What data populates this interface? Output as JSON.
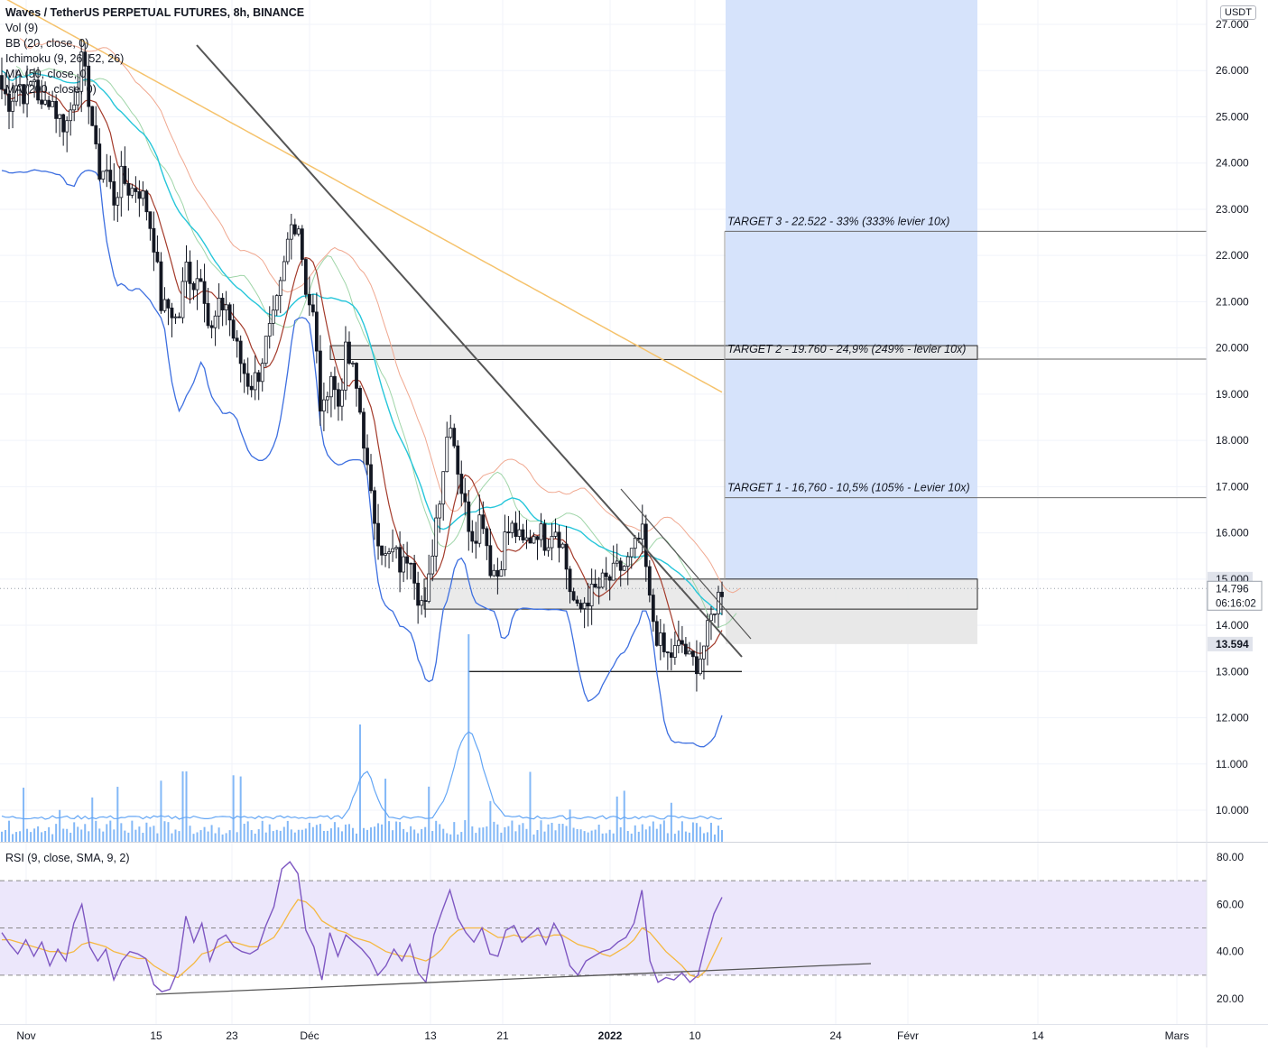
{
  "header": {
    "title": "Waves / TetherUS PERPETUAL FUTURES, 8h, BINANCE",
    "currency": "USDT",
    "indicators": [
      "Vol (9)",
      "BB (20, close, 0)",
      "Ichimoku (9, 26, 52, 26)",
      "MA (50, close, 0)",
      "MA (200, close, 0)"
    ]
  },
  "colors": {
    "candle": "#131722",
    "ma50": "#26c6da",
    "ma200": "#f5c26b",
    "bb": "#3d6fe0",
    "ichimoku_base": "#a33a2a",
    "ichimoku_lead": "#f0a890",
    "ichimoku_cloud_line": "#9fd5a8",
    "rsi": "#7e57c2",
    "rsi_ma": "#f5b840",
    "rsi_band": "#ece7fb",
    "target_zone": "#d6e3fb",
    "volume": "#64a6f5",
    "trendline": "#555555",
    "zone": "#e6e6e6"
  },
  "chart_data": {
    "type": "candlestick",
    "price_axis": {
      "ylim": [
        9.5,
        27.2
      ],
      "ticks": [
        "27.000",
        "26.000",
        "25.000",
        "24.000",
        "23.000",
        "22.000",
        "21.000",
        "20.000",
        "19.000",
        "18.000",
        "17.000",
        "16.000",
        "15.000",
        "14.000",
        "13.000",
        "12.000",
        "11.000",
        "10.000"
      ]
    },
    "time_axis": {
      "labels": [
        "Nov",
        "15",
        "23",
        "Déc",
        "13",
        "21",
        "2022",
        "10",
        "24",
        "Févr",
        "14",
        "Mars"
      ]
    },
    "price_labels": {
      "current": "14.796",
      "countdown": "06:16:02",
      "level_high": "15.000",
      "level_low": "13.594"
    },
    "targets": [
      {
        "label": "TARGET 3 - 22.522 - 33% (333% levier 10x)",
        "price": 22.522
      },
      {
        "label": "TARGET 2 - 19.760 - 24,9% (249% - levier 10x)",
        "price": 19.76
      },
      {
        "label": "TARGET 1 - 16,760 - 10,5% (105% - Levier 10x)",
        "price": 16.76
      }
    ],
    "zones": [
      {
        "name": "resistance",
        "from": 19.75,
        "to": 20.05
      },
      {
        "name": "support",
        "from": 14.35,
        "to": 15.0
      }
    ],
    "support_line": 13.0,
    "close_series": [
      25.6,
      25.3,
      25.8,
      25.4,
      25.9,
      25.1,
      25.5,
      25.0,
      24.8,
      25.4,
      26.2,
      25.3,
      23.8,
      23.9,
      23.2,
      23.7,
      23.4,
      23.5,
      23.1,
      22.3,
      20.8,
      20.9,
      20.5,
      21.8,
      21.4,
      21.7,
      20.2,
      20.8,
      21.0,
      20.2,
      19.6,
      19.2,
      19.4,
      20.1,
      20.6,
      21.4,
      22.6,
      22.8,
      21.3,
      20.6,
      18.3,
      19.6,
      18.7,
      19.9,
      19.4,
      18.4,
      16.8,
      16.0,
      15.4,
      15.6,
      15.2,
      15.7,
      14.7,
      14.3,
      16.0,
      17.2,
      18.6,
      17.4,
      16.4,
      15.9,
      16.5,
      15.3,
      15.1,
      16.0,
      16.1,
      15.7,
      15.9,
      16.1,
      15.8,
      16.2,
      15.8,
      14.8,
      14.2,
      14.6,
      14.7,
      14.9,
      15.0,
      15.2,
      15.3,
      15.6,
      16.0,
      14.4,
      13.7,
      13.3,
      13.4,
      13.6,
      13.2,
      13.2,
      13.7,
      14.4,
      14.8
    ],
    "rsi": {
      "label": "RSI (9, close, SMA, 9, 2)",
      "ylim": [
        13,
        85
      ],
      "ticks": [
        "80.00",
        "60.00",
        "40.00",
        "20.00"
      ],
      "band": [
        30,
        70
      ],
      "mid": 50,
      "values": [
        48,
        43,
        39,
        45,
        38,
        44,
        34,
        41,
        36,
        52,
        60,
        42,
        36,
        41,
        28,
        36,
        40,
        39,
        37,
        26,
        23,
        24,
        32,
        55,
        44,
        52,
        36,
        45,
        47,
        42,
        40,
        39,
        41,
        51,
        59,
        75,
        78,
        73,
        49,
        42,
        28,
        48,
        38,
        47,
        44,
        41,
        37,
        30,
        34,
        41,
        36,
        43,
        31,
        27,
        47,
        57,
        66,
        54,
        48,
        44,
        50,
        39,
        38,
        49,
        51,
        44,
        47,
        50,
        43,
        52,
        46,
        34,
        30,
        36,
        38,
        40,
        41,
        44,
        46,
        52,
        66,
        36,
        27,
        29,
        28,
        31,
        27,
        30,
        44,
        56,
        63
      ],
      "ma_values": [
        45,
        45,
        44,
        43,
        42,
        41,
        40,
        40,
        39,
        40,
        43,
        44,
        43,
        42,
        40,
        39,
        38,
        37,
        37,
        34,
        32,
        30,
        29,
        32,
        35,
        39,
        40,
        42,
        44,
        44,
        43,
        42,
        42,
        44,
        46,
        51,
        57,
        62,
        61,
        58,
        53,
        51,
        49,
        48,
        46,
        45,
        44,
        42,
        40,
        39,
        38,
        38,
        37,
        36,
        38,
        41,
        46,
        49,
        50,
        50,
        50,
        48,
        46,
        46,
        47,
        46,
        46,
        47,
        46,
        47,
        47,
        45,
        43,
        42,
        41,
        39,
        38,
        40,
        42,
        45,
        50,
        48,
        44,
        40,
        37,
        34,
        30,
        29,
        32,
        39,
        46
      ]
    }
  }
}
